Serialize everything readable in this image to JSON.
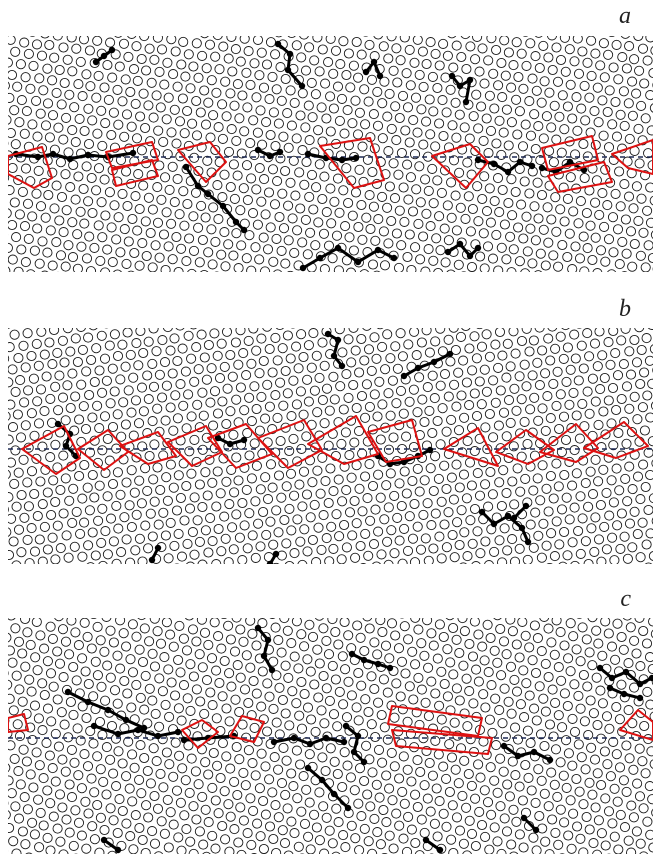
{
  "panels": [
    {
      "label": "a"
    },
    {
      "label": "b"
    },
    {
      "label": "c"
    }
  ],
  "colors": {
    "lattice": "#1a1a1a",
    "defect": "#000000",
    "polygon": "#dd1111",
    "centerline": "#1f2a55"
  }
}
